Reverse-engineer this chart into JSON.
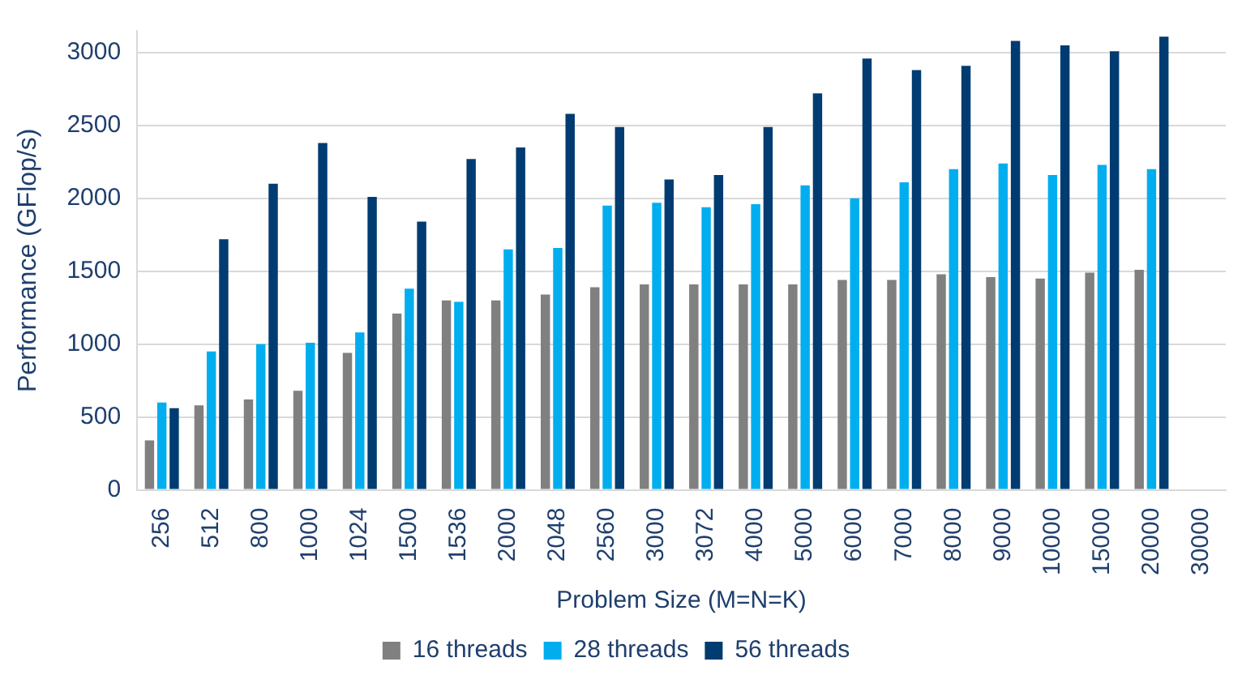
{
  "chart_data": {
    "type": "bar",
    "xlabel": "Problem Size (M=N=K)",
    "ylabel": "Performance (GFlop/s)",
    "categories": [
      "256",
      "512",
      "800",
      "1000",
      "1024",
      "1500",
      "1536",
      "2000",
      "2048",
      "2560",
      "3000",
      "3072",
      "4000",
      "5000",
      "6000",
      "7000",
      "8000",
      "9000",
      "10000",
      "15000",
      "20000",
      "30000"
    ],
    "series": [
      {
        "name": "16 threads",
        "color": "#808080",
        "values": [
          340,
          580,
          620,
          680,
          940,
          1210,
          1300,
          1300,
          1340,
          1390,
          1410,
          1410,
          1410,
          1410,
          1440,
          1440,
          1480,
          1460,
          1450,
          1490,
          1510,
          null
        ]
      },
      {
        "name": "28 threads",
        "color": "#00aeef",
        "values": [
          600,
          950,
          1000,
          1010,
          1080,
          1380,
          1290,
          1650,
          1660,
          1950,
          1970,
          1940,
          1960,
          2090,
          2000,
          2110,
          2200,
          2240,
          2160,
          2230,
          2200,
          null
        ]
      },
      {
        "name": "56 threads",
        "color": "#003c71",
        "values": [
          560,
          1720,
          2100,
          2380,
          2010,
          1840,
          2270,
          2350,
          2580,
          2490,
          2130,
          2160,
          2490,
          2720,
          2960,
          2880,
          2910,
          3080,
          3050,
          3010,
          3110,
          null
        ]
      }
    ],
    "ylim": [
      0,
      3150
    ],
    "yticks": [
      0,
      500,
      1000,
      1500,
      2000,
      2500,
      3000
    ],
    "grid": "y",
    "legend": "bottom"
  }
}
